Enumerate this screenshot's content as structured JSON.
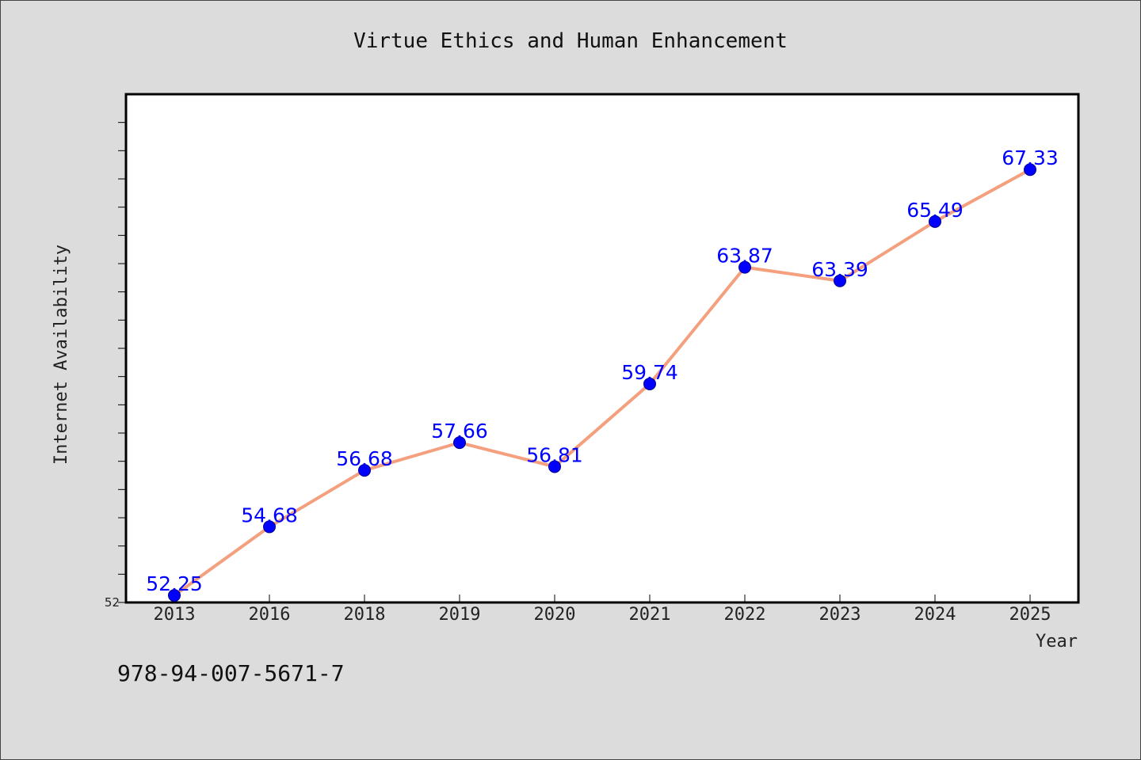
{
  "chart_data": {
    "type": "line",
    "title": "Virtue Ethics and Human Enhancement",
    "xlabel": "Year",
    "ylabel": "Internet Availability",
    "categories": [
      "2013",
      "2016",
      "2018",
      "2019",
      "2020",
      "2021",
      "2022",
      "2023",
      "2024",
      "2025"
    ],
    "values": [
      52.25,
      54.68,
      56.68,
      57.66,
      56.81,
      59.74,
      63.87,
      63.39,
      65.49,
      67.33
    ],
    "data_labels": [
      "52.25",
      "54.68",
      "56.68",
      "57.66",
      "56.81",
      "59.74",
      "63.87",
      "63.39",
      "65.49",
      "67.33"
    ],
    "ylim": [
      52,
      70
    ],
    "yticks_labeled": [
      "52"
    ],
    "grid": false,
    "legend": "none",
    "colors": {
      "line": "#f4a07e",
      "marker": "#0000ff",
      "data_label": "#0000ff",
      "plot_background": "#ffffff",
      "figure_background": "#dcdcdc"
    }
  },
  "footer": {
    "isbn": "978-94-007-5671-7"
  }
}
